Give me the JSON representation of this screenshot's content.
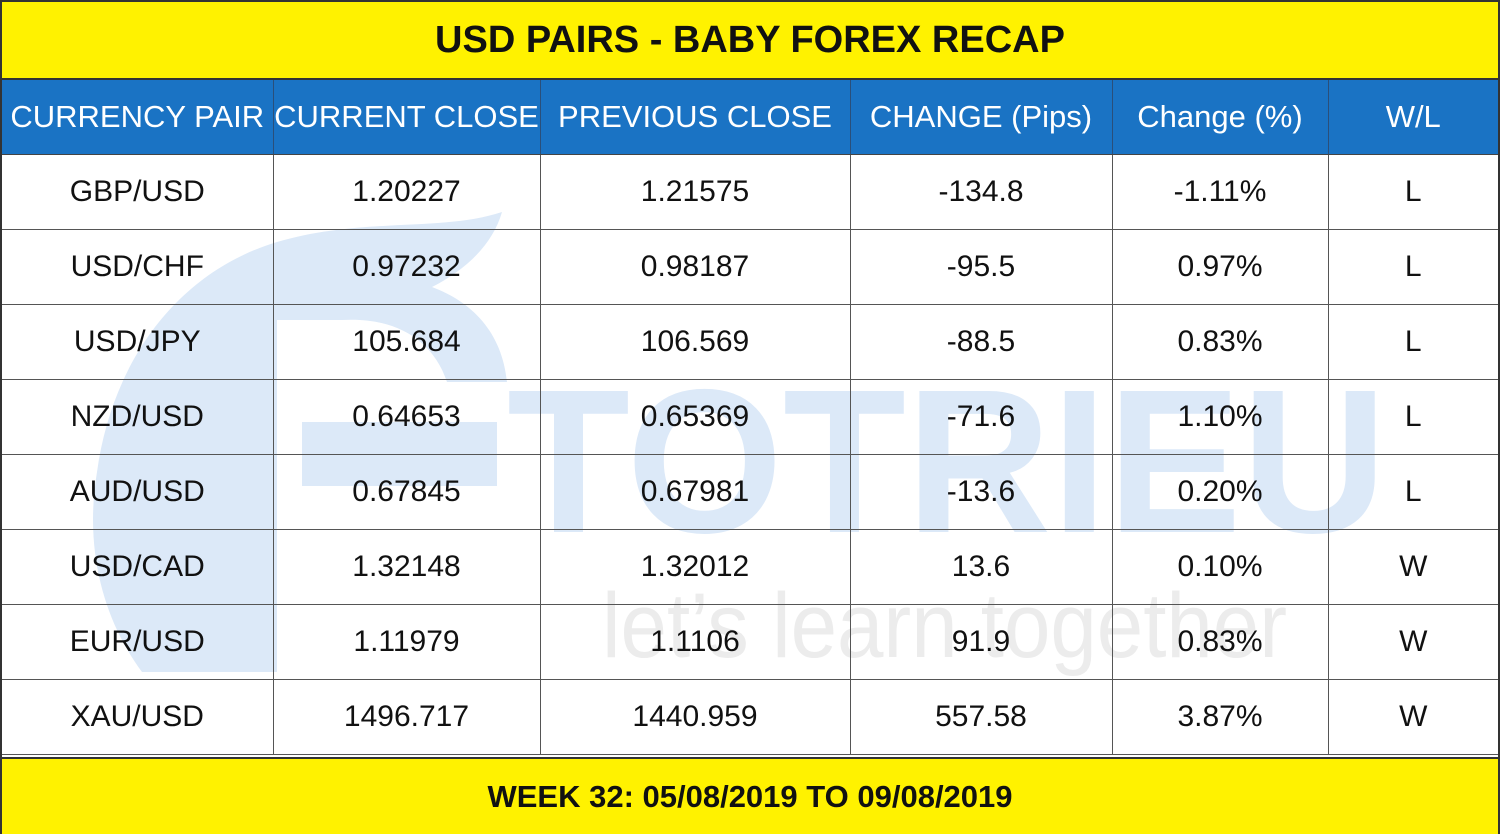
{
  "title": "USD PAIRS - BABY FOREX RECAP",
  "columns": [
    "CURRENCY PAIR",
    "CURRENT CLOSE",
    "PREVIOUS CLOSE",
    "CHANGE (Pips)",
    "Change (%)",
    "W/L"
  ],
  "rows": [
    [
      "GBP/USD",
      "1.20227",
      "1.21575",
      "-134.8",
      "-1.11%",
      "L"
    ],
    [
      "USD/CHF",
      "0.97232",
      "0.98187",
      "-95.5",
      "0.97%",
      "L"
    ],
    [
      "USD/JPY",
      "105.684",
      "106.569",
      "-88.5",
      "0.83%",
      "L"
    ],
    [
      "NZD/USD",
      "0.64653",
      "0.65369",
      "-71.6",
      "1.10%",
      "L"
    ],
    [
      "AUD/USD",
      "0.67845",
      "0.67981",
      "-13.6",
      "0.20%",
      "L"
    ],
    [
      "USD/CAD",
      "1.32148",
      "1.32012",
      "13.6",
      "0.10%",
      "W"
    ],
    [
      "EUR/USD",
      "1.11979",
      "1.1106",
      "91.9",
      "0.83%",
      "W"
    ],
    [
      "XAU/USD",
      "1496.717",
      "1440.959",
      "557.58",
      "3.87%",
      "W"
    ]
  ],
  "footer": "WEEK 32: 05/08/2019 TO 09/08/2019",
  "watermark": {
    "brand": "TOTRIEU",
    "tagline": "let’s learn together"
  },
  "colors": {
    "banner": "#fff200",
    "header": "#1a73c4",
    "watermark_blue": "#dce9f8",
    "watermark_gray": "#ececec"
  }
}
